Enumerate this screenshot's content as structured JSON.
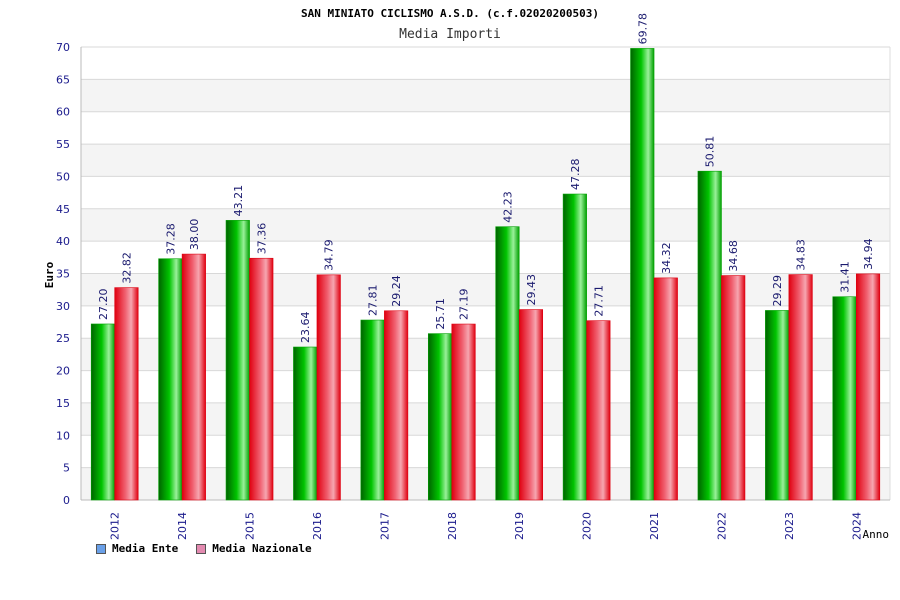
{
  "chart_data": {
    "type": "bar",
    "title": "SAN MINIATO CICLISMO A.S.D. (c.f.02020200503)",
    "subtitle": "Media Importi",
    "xlabel": "Anno",
    "ylabel": "Euro",
    "ylim": [
      0,
      70
    ],
    "yticks": [
      "0",
      "5",
      "10",
      "15",
      "20",
      "25",
      "30",
      "35",
      "40",
      "45",
      "50",
      "55",
      "60",
      "65",
      "70"
    ],
    "categories": [
      "2012",
      "2014",
      "2015",
      "2016",
      "2017",
      "2018",
      "2019",
      "2020",
      "2021",
      "2022",
      "2023",
      "2024"
    ],
    "series": [
      {
        "name": "Media Ente",
        "values": [
          27.2,
          37.28,
          43.21,
          23.64,
          27.81,
          25.71,
          42.23,
          47.28,
          69.78,
          50.81,
          29.29,
          31.41
        ],
        "labels": [
          "27.20",
          "37.28",
          "43.21",
          "23.64",
          "27.81",
          "25.71",
          "42.23",
          "47.28",
          "69.78",
          "50.81",
          "29.29",
          "31.41"
        ],
        "bar_color": "#00b400",
        "legend_color": "#6aa0e8"
      },
      {
        "name": "Media Nazionale",
        "values": [
          32.82,
          38.0,
          37.36,
          34.79,
          29.24,
          27.19,
          29.43,
          27.71,
          34.32,
          34.68,
          34.83,
          34.94
        ],
        "labels": [
          "32.82",
          "38.00",
          "37.36",
          "34.79",
          "29.24",
          "27.19",
          "29.43",
          "27.71",
          "34.32",
          "34.68",
          "34.83",
          "34.94"
        ],
        "bar_color": "#ee1c2a",
        "legend_color": "#e38ab0"
      }
    ],
    "grid": true,
    "legend_position": "bottom-left"
  }
}
